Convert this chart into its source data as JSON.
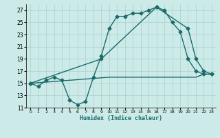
{
  "title": "",
  "xlabel": "Humidex (Indice chaleur)",
  "bg_color": "#cceae7",
  "grid_color": "#aed4d1",
  "line_color": "#1a6b6b",
  "xlim": [
    -0.5,
    23.5
  ],
  "ylim": [
    11,
    28
  ],
  "yticks": [
    11,
    13,
    15,
    17,
    19,
    21,
    23,
    25,
    27
  ],
  "xticks": [
    0,
    1,
    2,
    3,
    4,
    5,
    6,
    7,
    8,
    9,
    10,
    11,
    12,
    13,
    14,
    15,
    16,
    17,
    18,
    19,
    20,
    21,
    22,
    23
  ],
  "line1_x": [
    0,
    1,
    2,
    3,
    4,
    5,
    6,
    7,
    8,
    9,
    10,
    11,
    12,
    13,
    14,
    15,
    16,
    17,
    18,
    19,
    20,
    21,
    22,
    23
  ],
  "line1_y": [
    15.0,
    14.5,
    15.5,
    16.0,
    15.5,
    12.2,
    11.5,
    12.0,
    16.0,
    19.5,
    24.0,
    26.0,
    26.0,
    26.5,
    26.5,
    27.0,
    27.5,
    27.0,
    25.0,
    23.5,
    19.0,
    17.0,
    16.5,
    16.5
  ],
  "line2_x": [
    0,
    9,
    16,
    20,
    21,
    22,
    23
  ],
  "line2_y": [
    15.0,
    19.0,
    27.5,
    24.0,
    19.0,
    17.0,
    16.5
  ],
  "line3_x": [
    0,
    10,
    19,
    21,
    22,
    23
  ],
  "line3_y": [
    15.0,
    16.0,
    16.0,
    16.0,
    16.5,
    16.5
  ],
  "marker": "D",
  "markersize": 2.5,
  "linewidth": 1.0
}
